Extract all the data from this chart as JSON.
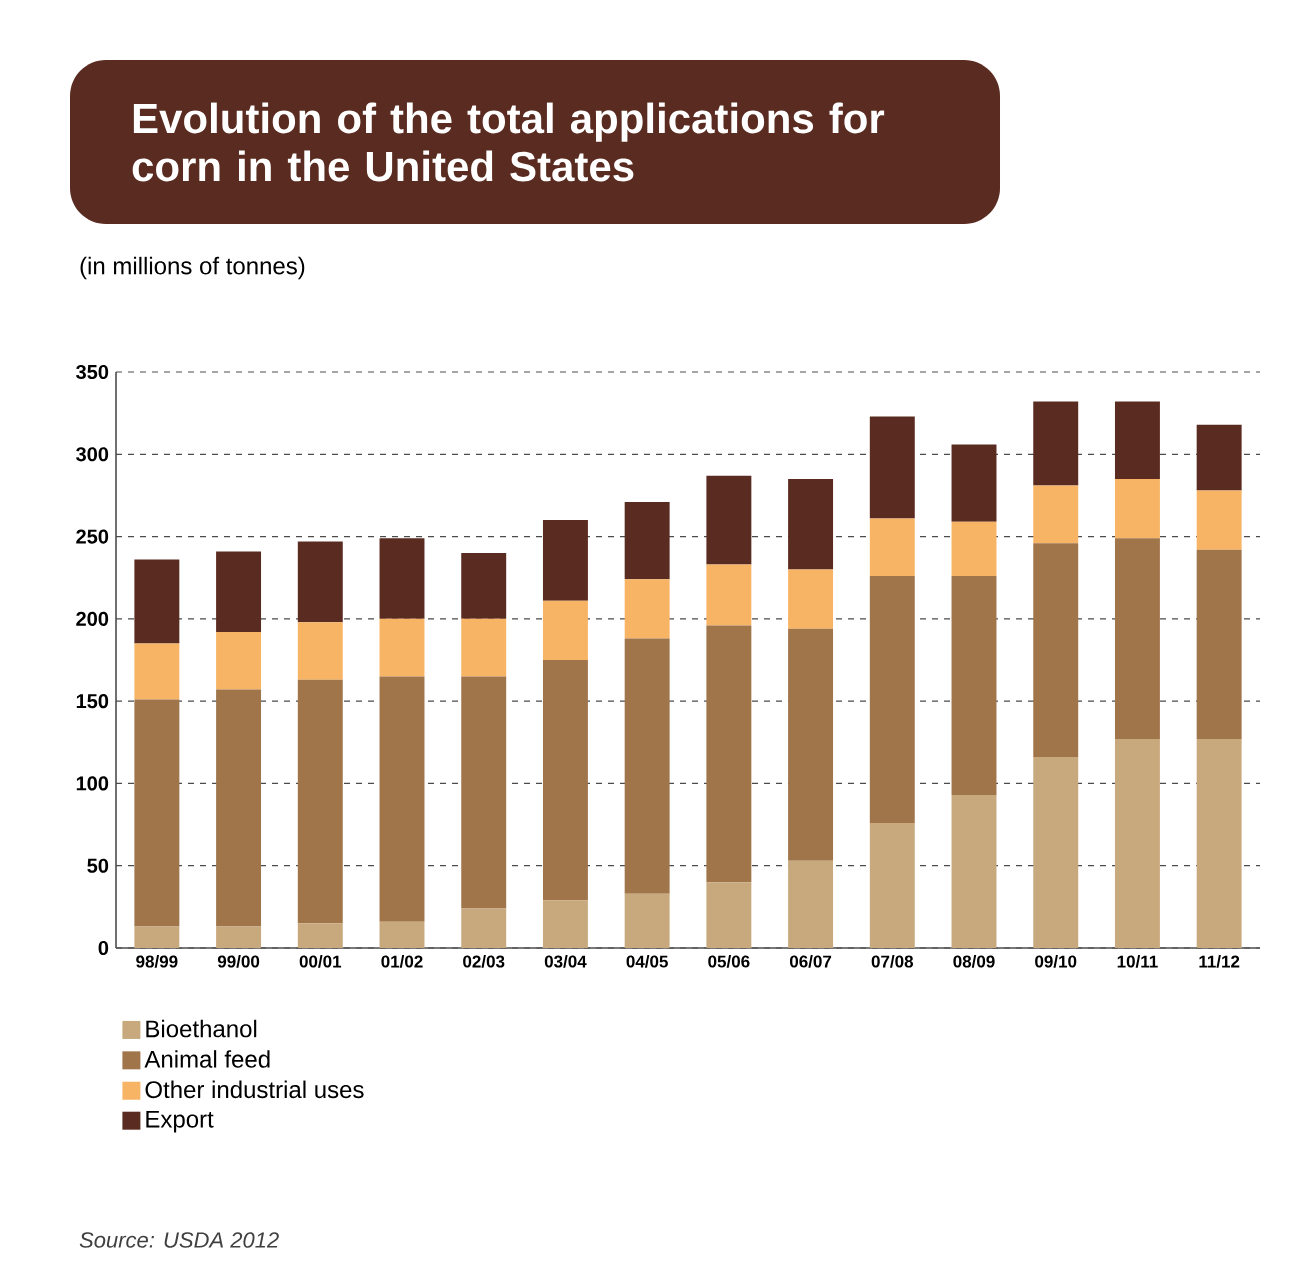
{
  "chart_data": {
    "type": "bar",
    "stacked": true,
    "title": "Evolution of the total applications for corn in the United States",
    "subtitle": "(in millions of tonnes)",
    "categories": [
      "98/99",
      "99/00",
      "00/01",
      "01/02",
      "02/03",
      "03/04",
      "04/05",
      "05/06",
      "06/07",
      "07/08",
      "08/09",
      "09/10",
      "10/11",
      "11/12"
    ],
    "series": [
      {
        "name": "Bioethanol",
        "color": "#c8a97e",
        "values": [
          13,
          13,
          15,
          16,
          24,
          29,
          33,
          40,
          53,
          76,
          93,
          116,
          127,
          127
        ]
      },
      {
        "name": "Animal feed",
        "color": "#a0754a",
        "values": [
          138,
          144,
          148,
          149,
          141,
          146,
          155,
          156,
          141,
          150,
          133,
          130,
          122,
          115
        ]
      },
      {
        "name": "Other industrial uses",
        "color": "#f8b465",
        "values": [
          34,
          35,
          35,
          35,
          35,
          36,
          36,
          37,
          36,
          35,
          33,
          35,
          36,
          36
        ]
      },
      {
        "name": "Export",
        "color": "#5a2b20",
        "values": [
          51,
          49,
          49,
          49,
          40,
          49,
          47,
          54,
          55,
          62,
          47,
          51,
          47,
          40
        ]
      }
    ],
    "ylim": [
      0,
      350
    ],
    "yticks": [
      0,
      50,
      100,
      150,
      200,
      250,
      300,
      350
    ],
    "grid": "y",
    "legend": "bottom",
    "annotations": [
      "Source: USDA 2012"
    ]
  }
}
